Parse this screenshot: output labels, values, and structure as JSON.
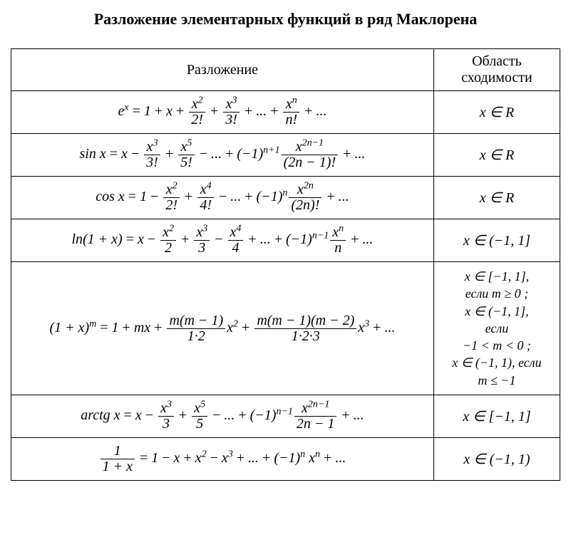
{
  "title": "Разложение элементарных функций в ряд Маклорена",
  "headers": {
    "expansion": "Разложение",
    "convergence": "Область сходимости"
  },
  "rows": {
    "exp": {
      "lhs": "e<sup>x</sup>",
      "rhs_terms": [
        "1",
        "x",
        {
          "num": "x<sup>2</sup>",
          "den": "2!"
        },
        {
          "num": "x<sup>3</sup>",
          "den": "3!"
        },
        "...",
        {
          "num": "x<sup>n</sup>",
          "den": "n!"
        },
        "..."
      ],
      "signs": [
        "=",
        "+",
        "+",
        "+",
        "+",
        "+",
        "+"
      ],
      "conv": "x ∈ R"
    },
    "sin": {
      "lhs": "sin x",
      "rhs_terms": [
        "x",
        {
          "num": "x<sup>3</sup>",
          "den": "3!"
        },
        {
          "num": "x<sup>5</sup>",
          "den": "5!"
        },
        "...",
        "(−1)<sup>n+1</sup>",
        {
          "num": "x<sup>2n−1</sup>",
          "den": "(2n − 1)!"
        },
        "..."
      ],
      "signs": [
        "=",
        "−",
        "+",
        "−",
        "+",
        "",
        "+"
      ],
      "conv": "x ∈ R"
    },
    "cos": {
      "lhs": "cos x",
      "rhs_terms": [
        "1",
        {
          "num": "x<sup>2</sup>",
          "den": "2!"
        },
        {
          "num": "x<sup>4</sup>",
          "den": "4!"
        },
        "...",
        "(−1)<sup>n</sup>",
        {
          "num": "x<sup>2n</sup>",
          "den": "(2n)!"
        },
        "..."
      ],
      "signs": [
        "=",
        "−",
        "+",
        "−",
        "+",
        "",
        "+"
      ],
      "conv": "x ∈ R"
    },
    "ln": {
      "lhs": "ln(1 + x)",
      "rhs_terms": [
        "x",
        {
          "num": "x<sup>2</sup>",
          "den": "2"
        },
        {
          "num": "x<sup>3</sup>",
          "den": "3"
        },
        {
          "num": "x<sup>4</sup>",
          "den": "4"
        },
        "...",
        "(−1)<sup>n−1</sup>",
        {
          "num": "x<sup>n</sup>",
          "den": "n"
        },
        "..."
      ],
      "signs": [
        "=",
        "−",
        "+",
        "−",
        "+",
        "+",
        "",
        "+"
      ],
      "conv": "x ∈ (−1, 1]"
    },
    "binom": {
      "lhs": "(1 + x)<sup>m</sup>",
      "rhs_terms": [
        "1",
        "mx",
        {
          "num": "m(m − 1)",
          "den": "1·2"
        },
        "x<sup>2</sup>",
        {
          "num": "m(m − 1)(m − 2)",
          "den": "1·2·3"
        },
        "x<sup>3</sup>",
        "..."
      ],
      "signs": [
        "=",
        "+",
        "+",
        "",
        "+",
        "",
        "+"
      ],
      "conv_lines": [
        "x ∈ [−1, 1],",
        "если  m ≥ 0 ;",
        "x ∈ (−1, 1],",
        "если",
        "−1 < m < 0 ;",
        "x ∈ (−1, 1), если",
        "m ≤ −1"
      ]
    },
    "arctg": {
      "lhs": "arctg x",
      "rhs_terms": [
        "x",
        {
          "num": "x<sup>3</sup>",
          "den": "3"
        },
        {
          "num": "x<sup>5</sup>",
          "den": "5"
        },
        "...",
        "(−1)<sup>n−1</sup>",
        {
          "num": "x<sup>2n−1</sup>",
          "den": "2n − 1"
        },
        "..."
      ],
      "signs": [
        "=",
        "−",
        "+",
        "−",
        "+",
        "",
        "+"
      ],
      "conv": "x ∈ [−1, 1]"
    },
    "geom": {
      "lhs_frac": {
        "num": "1",
        "den": "1 + x"
      },
      "rhs_terms": [
        "1",
        "x",
        "x<sup>2</sup>",
        "x<sup>3</sup>",
        "...",
        "(−1)<sup>n</sup> x<sup>n</sup>",
        "..."
      ],
      "signs": [
        "=",
        "−",
        "+",
        "−",
        "+",
        "+",
        "+"
      ],
      "conv": "x ∈ (−1, 1)"
    }
  }
}
